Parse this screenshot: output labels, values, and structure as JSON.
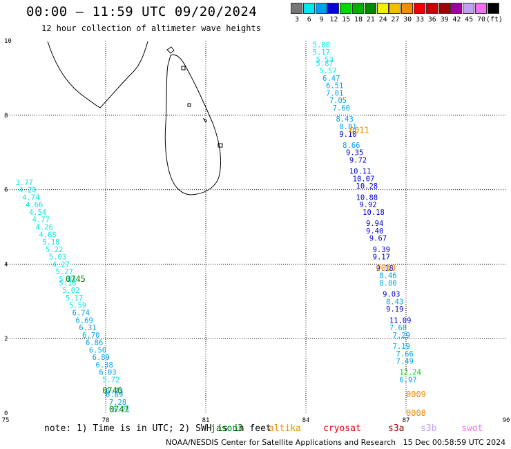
{
  "title": "00:00 — 11:59 UTC 09/20/2024",
  "subtitle": "12 hour collection of altimeter wave heights",
  "legend": {
    "colors": [
      "#777777",
      "#00e8e8",
      "#00a0f0",
      "#0000d8",
      "#00d800",
      "#00b000",
      "#008800",
      "#f0f000",
      "#f0c000",
      "#f09000",
      "#f00000",
      "#c80000",
      "#a00000",
      "#a000a0",
      "#c0a0f0",
      "#f070f0",
      "#000000"
    ],
    "labels": [
      "3",
      "6",
      "9",
      "12",
      "15",
      "18",
      "21",
      "24",
      "27",
      "30",
      "33",
      "36",
      "39",
      "42",
      "45",
      "70",
      "(ft)"
    ]
  },
  "axes": {
    "x_ticks": [
      "75",
      "78",
      "81",
      "84",
      "87",
      "90"
    ],
    "y_ticks": [
      "0",
      "2",
      "4",
      "6",
      "8",
      "10"
    ],
    "xlim": [
      75,
      90
    ],
    "ylim": [
      0,
      10
    ]
  },
  "chart_data": {
    "type": "scatter",
    "tracks": [
      {
        "satellite": "jason3",
        "pass_times": [
          {
            "text": "0745",
            "lon": 76.8,
            "lat": 3.6
          },
          {
            "text": "0746",
            "lon": 77.9,
            "lat": 0.6
          },
          {
            "text": "0747",
            "lon": 78.1,
            "lat": 0.1
          }
        ],
        "points": [
          {
            "lon": 75.3,
            "lat": 6.2,
            "swh": "3.77"
          },
          {
            "lon": 75.4,
            "lat": 6.0,
            "swh": "4.20"
          },
          {
            "lon": 75.5,
            "lat": 5.8,
            "swh": "4.74"
          },
          {
            "lon": 75.6,
            "lat": 5.6,
            "swh": "4.66"
          },
          {
            "lon": 75.7,
            "lat": 5.4,
            "swh": "4.54"
          },
          {
            "lon": 75.8,
            "lat": 5.2,
            "swh": "4.77"
          },
          {
            "lon": 75.9,
            "lat": 5.0,
            "swh": "4.26"
          },
          {
            "lon": 76.0,
            "lat": 4.8,
            "swh": "4.68"
          },
          {
            "lon": 76.1,
            "lat": 4.6,
            "swh": "5.18"
          },
          {
            "lon": 76.2,
            "lat": 4.4,
            "swh": "5.22"
          },
          {
            "lon": 76.3,
            "lat": 4.2,
            "swh": "5.03"
          },
          {
            "lon": 76.4,
            "lat": 4.0,
            "swh": "4.27"
          },
          {
            "lon": 76.5,
            "lat": 3.8,
            "swh": "5.27"
          },
          {
            "lon": 76.6,
            "lat": 3.6,
            "swh": "5.81"
          },
          {
            "lon": 76.6,
            "lat": 3.5,
            "swh": "5.16"
          },
          {
            "lon": 76.7,
            "lat": 3.3,
            "swh": "5.02"
          },
          {
            "lon": 76.8,
            "lat": 3.1,
            "swh": "5.17"
          },
          {
            "lon": 76.9,
            "lat": 2.9,
            "swh": "5.59"
          },
          {
            "lon": 77.0,
            "lat": 2.7,
            "swh": "6.74"
          },
          {
            "lon": 77.1,
            "lat": 2.5,
            "swh": "6.69"
          },
          {
            "lon": 77.2,
            "lat": 2.3,
            "swh": "6.31"
          },
          {
            "lon": 77.3,
            "lat": 2.1,
            "swh": "6.70"
          },
          {
            "lon": 77.4,
            "lat": 1.9,
            "swh": "6.86"
          },
          {
            "lon": 77.5,
            "lat": 1.7,
            "swh": "6.50"
          },
          {
            "lon": 77.6,
            "lat": 1.5,
            "swh": "6.89"
          },
          {
            "lon": 77.7,
            "lat": 1.3,
            "swh": "6.38"
          },
          {
            "lon": 77.8,
            "lat": 1.1,
            "swh": "6.03"
          },
          {
            "lon": 77.9,
            "lat": 0.9,
            "swh": "5.72"
          },
          {
            "lon": 78.0,
            "lat": 0.6,
            "swh": "6.73"
          },
          {
            "lon": 78.0,
            "lat": 0.5,
            "swh": "6.89"
          },
          {
            "lon": 78.1,
            "lat": 0.3,
            "swh": "7.28"
          },
          {
            "lon": 78.2,
            "lat": 0.1,
            "swh": "6.21"
          }
        ]
      },
      {
        "satellite": "altika",
        "pass_times": [
          {
            "text": "0011",
            "lon": 85.3,
            "lat": 7.6
          },
          {
            "text": "0010",
            "lon": 86.1,
            "lat": 3.9
          },
          {
            "text": "0009",
            "lon": 87.0,
            "lat": 0.5
          },
          {
            "text": "0008",
            "lon": 87.0,
            "lat": 0.0
          }
        ],
        "points": [
          {
            "lon": 84.2,
            "lat": 9.9,
            "swh": "5.00"
          },
          {
            "lon": 84.2,
            "lat": 9.7,
            "swh": "5.17"
          },
          {
            "lon": 84.3,
            "lat": 9.5,
            "swh": "5.53"
          },
          {
            "lon": 84.3,
            "lat": 9.4,
            "swh": "5.87"
          },
          {
            "lon": 84.4,
            "lat": 9.2,
            "swh": "5.57"
          },
          {
            "lon": 84.5,
            "lat": 9.0,
            "swh": "6.47"
          },
          {
            "lon": 84.6,
            "lat": 8.8,
            "swh": "6.51"
          },
          {
            "lon": 84.6,
            "lat": 8.6,
            "swh": "7.01"
          },
          {
            "lon": 84.7,
            "lat": 8.4,
            "swh": "7.05"
          },
          {
            "lon": 84.8,
            "lat": 8.2,
            "swh": "7.60"
          },
          {
            "lon": 84.9,
            "lat": 7.9,
            "swh": "8.43"
          },
          {
            "lon": 85.0,
            "lat": 7.7,
            "swh": "8.81"
          },
          {
            "lon": 85.0,
            "lat": 7.5,
            "swh": "9.10"
          },
          {
            "lon": 85.1,
            "lat": 7.2,
            "swh": "8.66"
          },
          {
            "lon": 85.2,
            "lat": 7.0,
            "swh": "9.35"
          },
          {
            "lon": 85.3,
            "lat": 6.8,
            "swh": "9.72"
          },
          {
            "lon": 85.3,
            "lat": 6.5,
            "swh": "10.11"
          },
          {
            "lon": 85.4,
            "lat": 6.3,
            "swh": "10.07"
          },
          {
            "lon": 85.5,
            "lat": 6.1,
            "swh": "10.28"
          },
          {
            "lon": 85.5,
            "lat": 5.8,
            "swh": "10.88"
          },
          {
            "lon": 85.6,
            "lat": 5.6,
            "swh": "9.92"
          },
          {
            "lon": 85.7,
            "lat": 5.4,
            "swh": "10.18"
          },
          {
            "lon": 85.8,
            "lat": 5.1,
            "swh": "9.94"
          },
          {
            "lon": 85.8,
            "lat": 4.9,
            "swh": "9.40"
          },
          {
            "lon": 85.9,
            "lat": 4.7,
            "swh": "9.67"
          },
          {
            "lon": 86.0,
            "lat": 4.4,
            "swh": "9.39"
          },
          {
            "lon": 86.0,
            "lat": 4.2,
            "swh": "9.17"
          },
          {
            "lon": 86.1,
            "lat": 3.9,
            "swh": "9.18"
          },
          {
            "lon": 86.2,
            "lat": 3.7,
            "swh": "8.46"
          },
          {
            "lon": 86.2,
            "lat": 3.5,
            "swh": "8.80"
          },
          {
            "lon": 86.3,
            "lat": 3.2,
            "swh": "9.03"
          },
          {
            "lon": 86.4,
            "lat": 3.0,
            "swh": "8.43"
          },
          {
            "lon": 86.4,
            "lat": 2.8,
            "swh": "9.19"
          },
          {
            "lon": 86.5,
            "lat": 2.5,
            "swh": "11.09"
          },
          {
            "lon": 86.5,
            "lat": 2.3,
            "swh": "7.68"
          },
          {
            "lon": 86.6,
            "lat": 2.1,
            "swh": "7.29"
          },
          {
            "lon": 86.6,
            "lat": 1.8,
            "swh": "7.19"
          },
          {
            "lon": 86.7,
            "lat": 1.6,
            "swh": "7.66"
          },
          {
            "lon": 86.7,
            "lat": 1.4,
            "swh": "7.49"
          },
          {
            "lon": 86.8,
            "lat": 1.1,
            "swh": "12.24"
          },
          {
            "lon": 86.8,
            "lat": 0.9,
            "swh": "6.97"
          }
        ]
      }
    ]
  },
  "note": {
    "prefix": "note: 1) Time is in UTC; 2) SWH is in feet",
    "satellites": [
      {
        "name": "jason3",
        "color": "#008000"
      },
      {
        "name": "altika",
        "color": "#f08800"
      },
      {
        "name": "cryosat",
        "color": "#e00000"
      },
      {
        "name": "s3a",
        "color": "#a00000"
      },
      {
        "name": "s3b",
        "color": "#c0a0f0"
      },
      {
        "name": "swot",
        "color": "#f070f0"
      }
    ]
  },
  "footer": "NOAA/NESDIS Center for Satellite Applications and Research   15 Dec 00:58:59 UTC 2024"
}
